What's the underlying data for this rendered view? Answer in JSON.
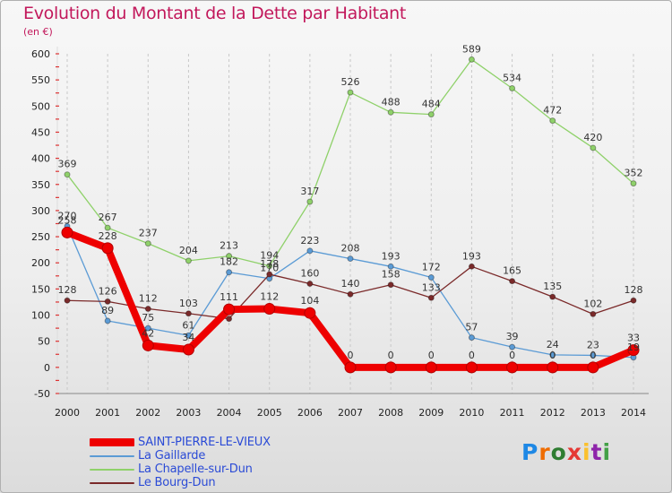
{
  "header": {
    "title": "Evolution du Montant de la Dette par Habitant",
    "subtitle": "(en €)"
  },
  "brand": {
    "logo": "Proxiti",
    "letter_colors": [
      "#1e88e5",
      "#ef6c00",
      "#2e7d32",
      "#e53935",
      "#fbc02d",
      "#8e24aa",
      "#43a047"
    ]
  },
  "chart_data": {
    "type": "line",
    "title": "Evolution du Montant de la Dette par Habitant",
    "subtitle": "(en €)",
    "xlabel": "",
    "ylabel": "",
    "x": [
      2000,
      2001,
      2002,
      2003,
      2004,
      2005,
      2006,
      2007,
      2008,
      2009,
      2010,
      2011,
      2012,
      2013,
      2014
    ],
    "y_ticks": [
      -50,
      0,
      50,
      100,
      150,
      200,
      250,
      300,
      350,
      400,
      450,
      500,
      550,
      600
    ],
    "ylim": [
      -50,
      600
    ],
    "grid": "vertical dashed",
    "legend_position": "bottom-left",
    "series": [
      {
        "name": "SAINT-PIERRE-LE-VIEUX",
        "color": "#ee0000",
        "emphasis": true,
        "values": [
          258,
          228,
          42,
          34,
          111,
          112,
          104,
          0,
          0,
          0,
          0,
          0,
          0,
          0,
          33
        ],
        "labels": [
          "258",
          "228",
          "42",
          "34",
          "111",
          "112",
          "104",
          "0",
          "0",
          "0",
          "0",
          "0",
          "0",
          "0",
          "33"
        ]
      },
      {
        "name": "La Gaillarde",
        "color": "#5b9bd5",
        "emphasis": false,
        "values": [
          270,
          89,
          75,
          61,
          182,
          170,
          223,
          208,
          193,
          172,
          57,
          39,
          24,
          23,
          19
        ],
        "labels": [
          "270",
          "89",
          "75",
          "61",
          "182",
          "170",
          "223",
          "208",
          "193",
          "172",
          "57",
          "39",
          "24",
          "23",
          "19"
        ]
      },
      {
        "name": "La Chapelle-sur-Dun",
        "color": "#8fd16a",
        "emphasis": false,
        "values": [
          369,
          267,
          237,
          204,
          213,
          194,
          317,
          526,
          488,
          484,
          589,
          534,
          472,
          420,
          352
        ],
        "labels": [
          "369",
          "267",
          "237",
          "204",
          "213",
          "194",
          "317",
          "526",
          "488",
          "484",
          "589",
          "534",
          "472",
          "420",
          "352"
        ]
      },
      {
        "name": "Le Bourg-Dun",
        "color": "#7b2a2a",
        "emphasis": false,
        "values": [
          128,
          126,
          112,
          103,
          93,
          178,
          160,
          140,
          158,
          133,
          193,
          165,
          135,
          102,
          128
        ],
        "labels": [
          "128",
          "126",
          "112",
          "103",
          "",
          "178",
          "160",
          "140",
          "158",
          "133",
          "193",
          "165",
          "135",
          "102",
          "128"
        ]
      }
    ]
  }
}
